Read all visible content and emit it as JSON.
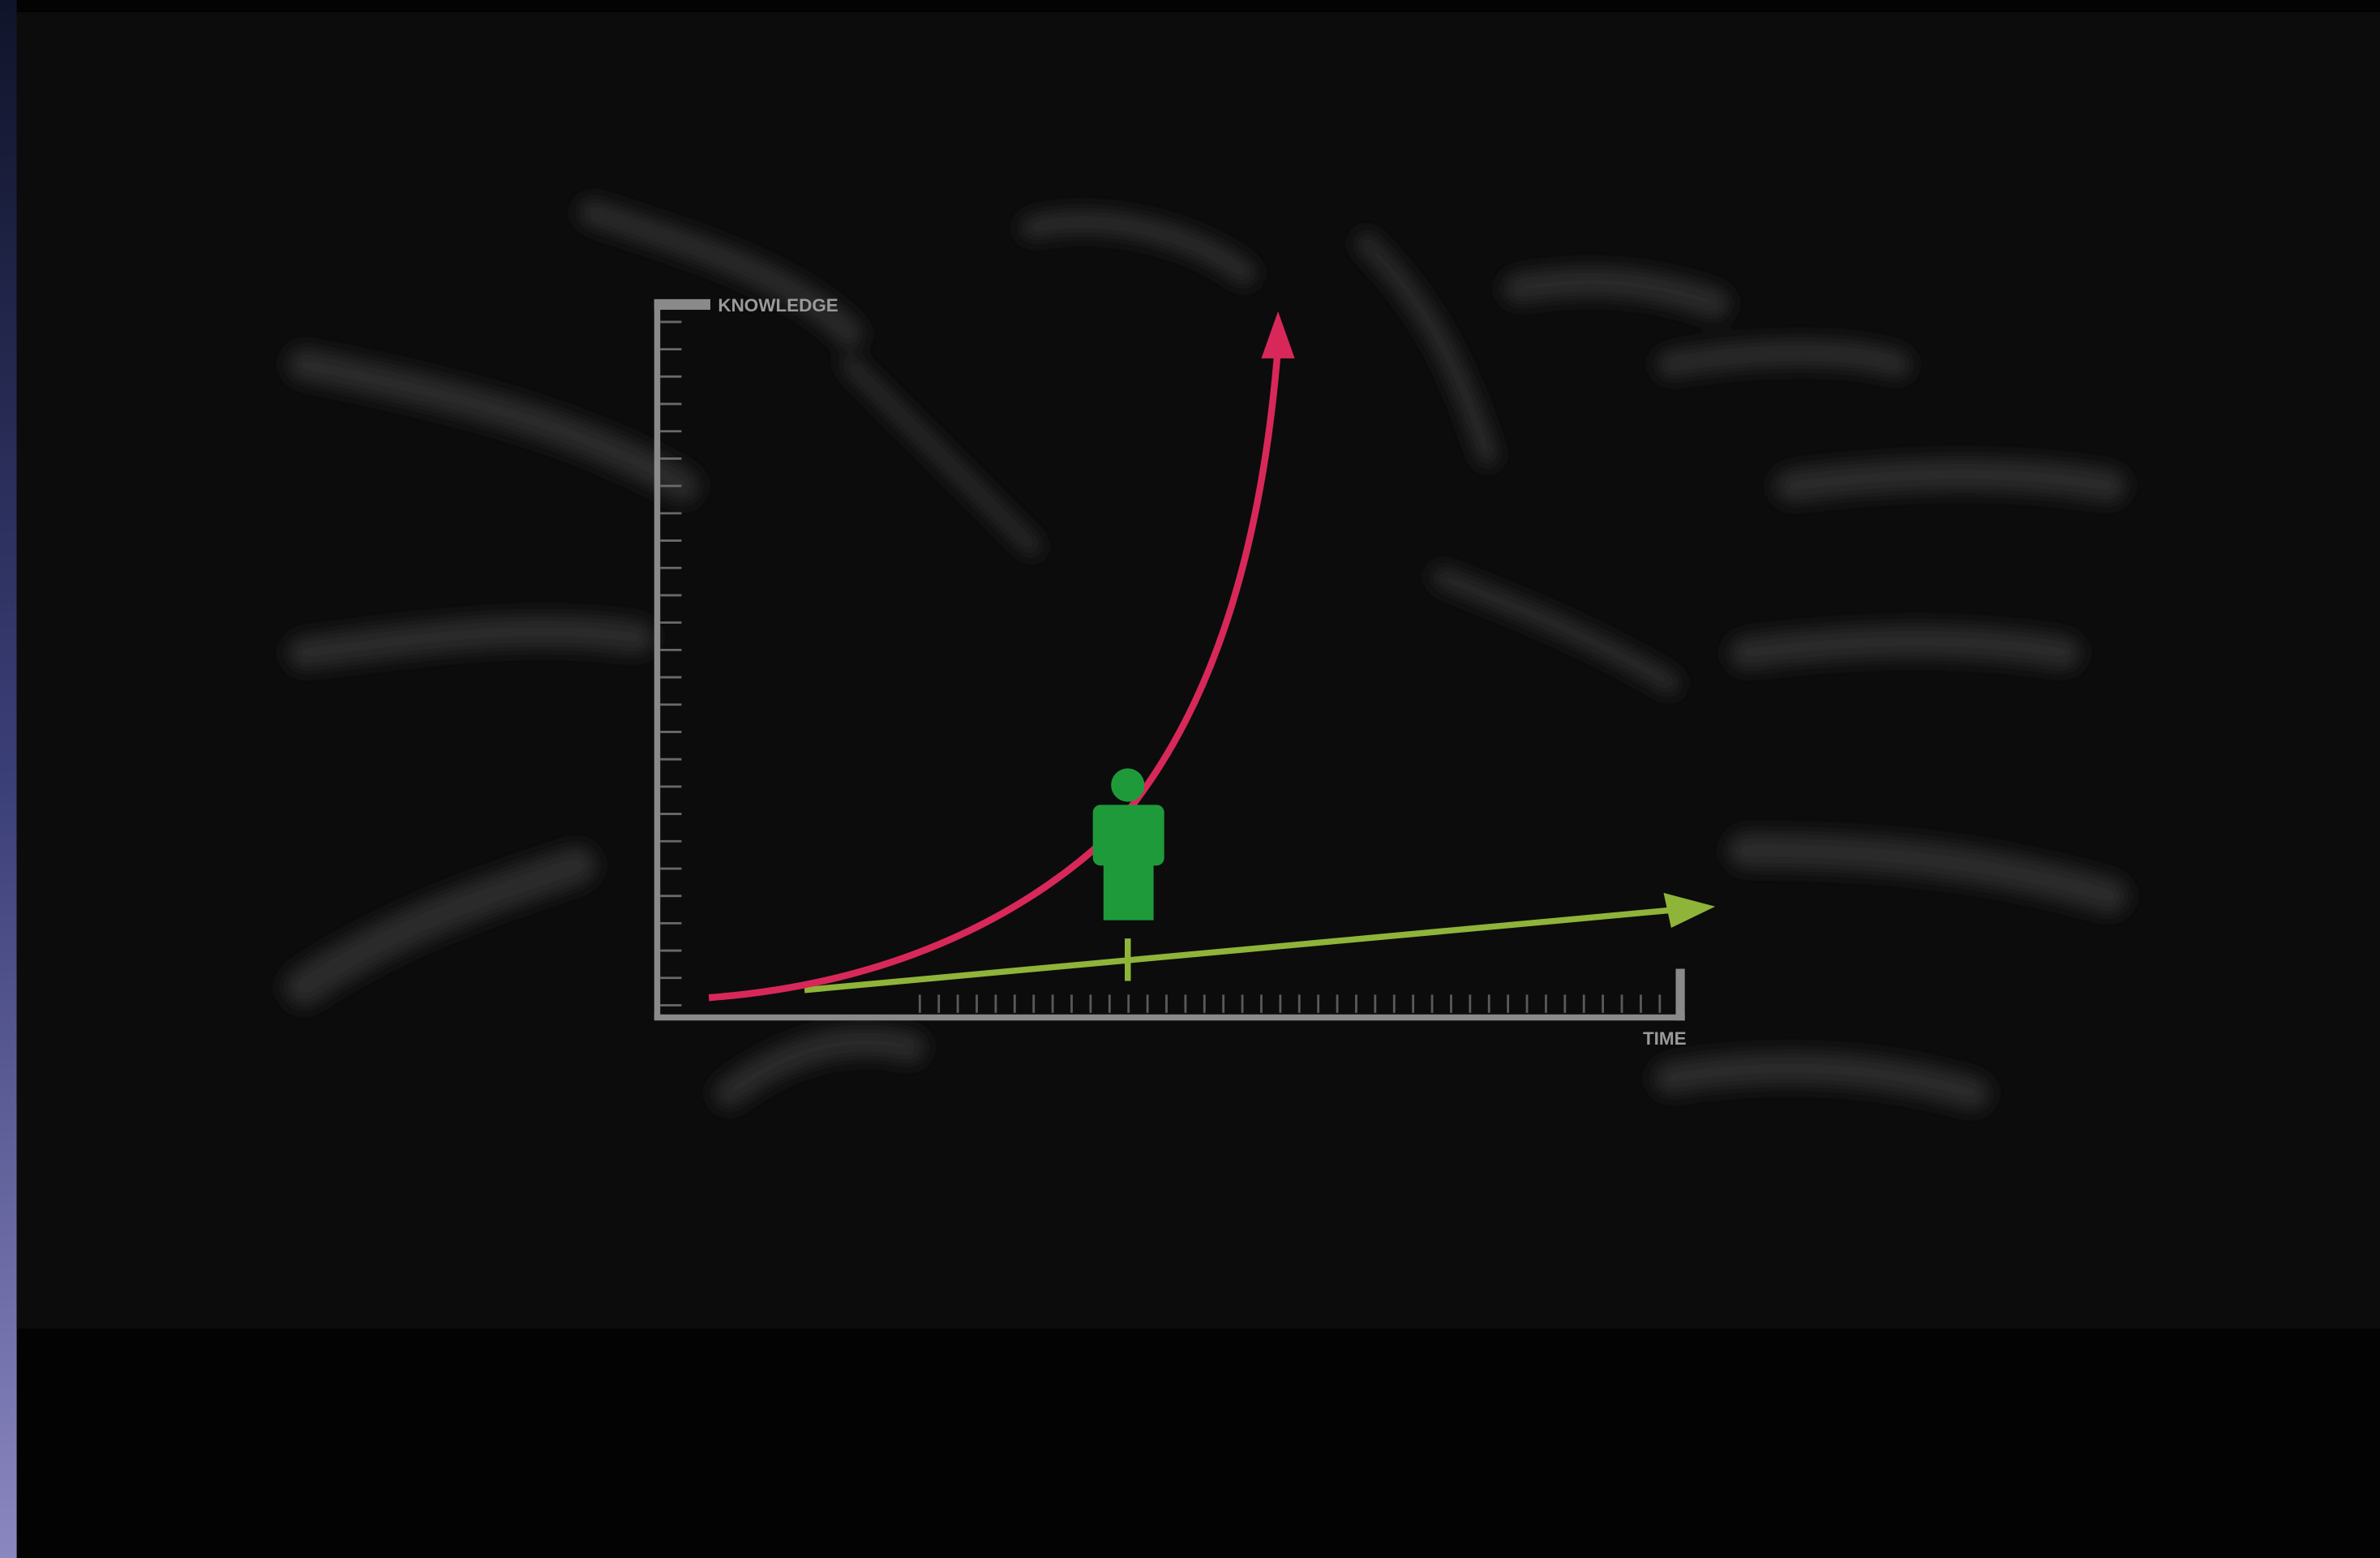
{
  "diagram": {
    "y_axis_label": "KNOWLEDGE",
    "x_axis_label": "TIME"
  }
}
